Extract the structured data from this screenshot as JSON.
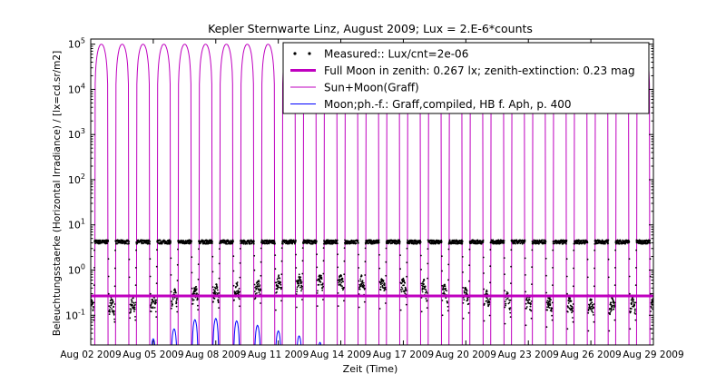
{
  "chart_data": {
    "type": "line",
    "title": "Kepler Sternwarte Linz, August 2009; Lux = 2.E-6*counts",
    "xlabel": "Zeit (Time)",
    "ylabel": "Beleuchtungsstaerke (Horizontal Irradiance) / [lx=cd.sr/m2]",
    "yscale": "log",
    "ylim": [
      0.022,
      130000
    ],
    "xlim": [
      0,
      27
    ],
    "x_ticks": [
      {
        "x": 0,
        "label": "Aug 02 2009"
      },
      {
        "x": 3,
        "label": "Aug 05 2009"
      },
      {
        "x": 6,
        "label": "Aug 08 2009"
      },
      {
        "x": 9,
        "label": "Aug 11 2009"
      },
      {
        "x": 12,
        "label": "Aug 14 2009"
      },
      {
        "x": 15,
        "label": "Aug 17 2009"
      },
      {
        "x": 18,
        "label": "Aug 20 2009"
      },
      {
        "x": 21,
        "label": "Aug 23 2009"
      },
      {
        "x": 24,
        "label": "Aug 26 2009"
      },
      {
        "x": 27,
        "label": "Aug 29 2009"
      }
    ],
    "y_ticks": [
      {
        "exp": -1,
        "base": "10",
        "sup": "-1"
      },
      {
        "exp": 0,
        "base": "10",
        "sup": "0"
      },
      {
        "exp": 1,
        "base": "10",
        "sup": "1"
      },
      {
        "exp": 2,
        "base": "10",
        "sup": "2"
      },
      {
        "exp": 3,
        "base": "10",
        "sup": "3"
      },
      {
        "exp": 4,
        "base": "10",
        "sup": "4"
      },
      {
        "exp": 5,
        "base": "10",
        "sup": "5"
      }
    ],
    "legend": {
      "position": "top-right",
      "entries": [
        {
          "label": "Measured:: Lux/cnt=2e-06",
          "color": "#000000",
          "style": "dots"
        },
        {
          "label": "Full Moon in zenith: 0.267 lx; zenith-extinction: 0.23 mag",
          "color": "#bf00bf",
          "style": "thick-line"
        },
        {
          "label": "Sun+Moon(Graff)",
          "color": "#bf00bf",
          "style": "line"
        },
        {
          "label": "Moon;ph.-f.: Graff,compiled, HB f. Aph, p. 400",
          "color": "#0000ff",
          "style": "line"
        }
      ]
    },
    "series": [
      {
        "name": "Measured:: Lux/cnt=2e-06",
        "color": "#000000",
        "day_plateau": 4.3,
        "night_min": [
          0.05,
          0.045,
          0.05,
          0.06,
          0.08,
          0.09,
          0.1,
          0.11,
          0.13,
          0.15,
          0.16,
          0.16,
          0.15,
          0.14,
          0.13,
          0.12,
          0.1,
          0.085,
          0.075,
          0.065,
          0.06,
          0.055,
          0.05,
          0.045,
          0.045,
          0.05,
          0.05,
          0.06
        ]
      },
      {
        "name": "Full Moon in zenith: 0.267 lx; zenith-extinction: 0.23 mag",
        "color": "#bf00bf",
        "value": 0.267
      },
      {
        "name": "Sun+Moon(Graff)",
        "color": "#bf00bf",
        "day_peak": 100000
      },
      {
        "name": "Moon;ph.-f.: Graff,compiled, HB f. Aph, p. 400",
        "color": "#0000ff",
        "nightly_peaks": [
          {
            "day": 3.0,
            "value": 0.03
          },
          {
            "day": 4.0,
            "value": 0.05
          },
          {
            "day": 5.0,
            "value": 0.08
          },
          {
            "day": 6.0,
            "value": 0.085
          },
          {
            "day": 7.0,
            "value": 0.075
          },
          {
            "day": 8.0,
            "value": 0.06
          },
          {
            "day": 9.0,
            "value": 0.045
          },
          {
            "day": 10.0,
            "value": 0.035
          },
          {
            "day": 11.0,
            "value": 0.025
          }
        ]
      }
    ]
  }
}
